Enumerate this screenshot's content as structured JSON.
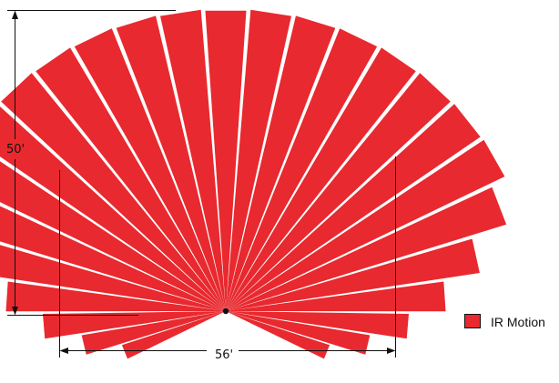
{
  "diagram": {
    "height_label": "50'",
    "width_label": "56'"
  },
  "legend": {
    "items": [
      {
        "label": "IR Motion",
        "color": "#e8292f"
      }
    ]
  },
  "colors": {
    "beam": "#e8292f",
    "line": "#111111",
    "background": "#ffffff"
  }
}
